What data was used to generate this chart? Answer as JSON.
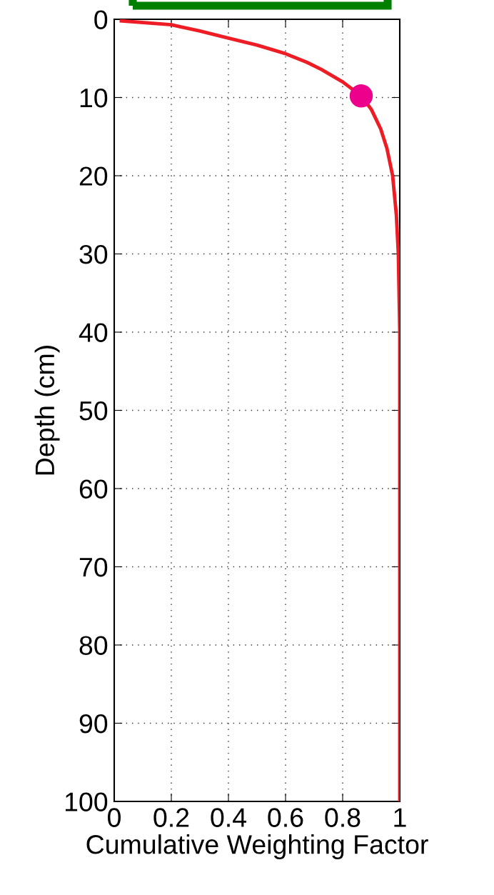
{
  "chart_data": {
    "type": "line",
    "xlabel": "Cumulative Weighting Factor",
    "ylabel": "Depth (cm)",
    "xlim": [
      0,
      1
    ],
    "ylim": [
      100,
      0
    ],
    "xticks": [
      0,
      0.2,
      0.4,
      0.6,
      0.8,
      1
    ],
    "yticks": [
      0,
      10,
      20,
      30,
      40,
      50,
      60,
      70,
      80,
      90,
      100
    ],
    "grid": true,
    "series": [
      {
        "color": "#ee1c25",
        "marker": "none",
        "x": [
          0.025,
          0.2,
          0.3,
          0.4,
          0.5,
          0.6,
          0.675,
          0.725,
          0.8,
          0.865,
          0.9,
          0.933,
          0.955,
          0.975,
          0.988,
          0.995,
          1,
          1
        ],
        "values": [
          0.2,
          0.7,
          1.5,
          2.4,
          3.3,
          4.4,
          5.5,
          6.4,
          8.0,
          9.8,
          11.5,
          14,
          16.5,
          20,
          25,
          30,
          40,
          100
        ]
      },
      {
        "type": "scatter",
        "color": "#ec008c",
        "marker": "circle",
        "x": [
          0.865
        ],
        "values": [
          9.8
        ]
      }
    ]
  }
}
